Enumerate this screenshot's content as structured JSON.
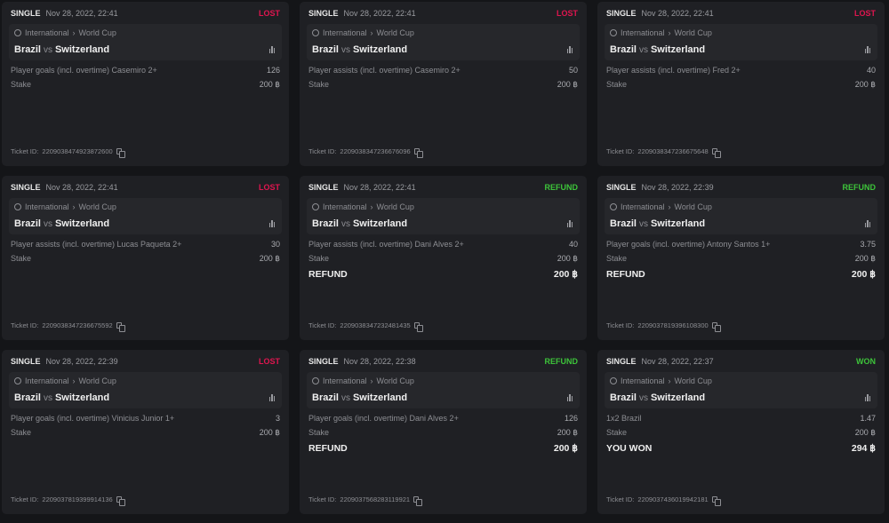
{
  "common": {
    "league": "International",
    "sep": "›",
    "tournament": "World Cup",
    "home": "Brazil",
    "vs": "vs",
    "away": "Switzerland",
    "stake_label": "Stake",
    "ticket_label": "Ticket ID:"
  },
  "bets": [
    {
      "type": "SINGLE",
      "date": "Nov 28, 2022, 22:41",
      "status": "LOST",
      "status_class": "lost",
      "market": "Player goals (incl. overtime) Casemiro 2+",
      "odds": "126",
      "stake": "200 ฿",
      "result_label": "",
      "result_value": "",
      "ticket_id": "2209038474923872600"
    },
    {
      "type": "SINGLE",
      "date": "Nov 28, 2022, 22:41",
      "status": "LOST",
      "status_class": "lost",
      "market": "Player assists (incl. overtime) Casemiro 2+",
      "odds": "50",
      "stake": "200 ฿",
      "result_label": "",
      "result_value": "",
      "ticket_id": "2209038347236676096"
    },
    {
      "type": "SINGLE",
      "date": "Nov 28, 2022, 22:41",
      "status": "LOST",
      "status_class": "lost",
      "market": "Player assists (incl. overtime) Fred 2+",
      "odds": "40",
      "stake": "200 ฿",
      "result_label": "",
      "result_value": "",
      "ticket_id": "2209038347236675648"
    },
    {
      "type": "SINGLE",
      "date": "Nov 28, 2022, 22:41",
      "status": "LOST",
      "status_class": "lost",
      "market": "Player assists (incl. overtime) Lucas Paqueta 2+",
      "odds": "30",
      "stake": "200 ฿",
      "result_label": "",
      "result_value": "",
      "ticket_id": "2209038347236675592"
    },
    {
      "type": "SINGLE",
      "date": "Nov 28, 2022, 22:41",
      "status": "REFUND",
      "status_class": "refund",
      "market": "Player assists (incl. overtime) Dani Alves 2+",
      "odds": "40",
      "stake": "200 ฿",
      "result_label": "REFUND",
      "result_value": "200 ฿",
      "ticket_id": "2209038347232481435"
    },
    {
      "type": "SINGLE",
      "date": "Nov 28, 2022, 22:39",
      "status": "REFUND",
      "status_class": "refund",
      "market": "Player goals (incl. overtime) Antony Santos 1+",
      "odds": "3.75",
      "stake": "200 ฿",
      "result_label": "REFUND",
      "result_value": "200 ฿",
      "ticket_id": "2209037819396108300"
    },
    {
      "type": "SINGLE",
      "date": "Nov 28, 2022, 22:39",
      "status": "LOST",
      "status_class": "lost",
      "market": "Player goals (incl. overtime) Vinicius Junior 1+",
      "odds": "3",
      "stake": "200 ฿",
      "result_label": "",
      "result_value": "",
      "ticket_id": "2209037819399914136"
    },
    {
      "type": "SINGLE",
      "date": "Nov 28, 2022, 22:38",
      "status": "REFUND",
      "status_class": "refund",
      "market": "Player goals (incl. overtime) Dani Alves 2+",
      "odds": "126",
      "stake": "200 ฿",
      "result_label": "REFUND",
      "result_value": "200 ฿",
      "ticket_id": "2209037568283119921"
    },
    {
      "type": "SINGLE",
      "date": "Nov 28, 2022, 22:37",
      "status": "WON",
      "status_class": "won",
      "market": "1x2 Brazil",
      "odds": "1.47",
      "stake": "200 ฿",
      "result_label": "YOU WON",
      "result_value": "294 ฿",
      "ticket_id": "2209037436019942181"
    }
  ]
}
